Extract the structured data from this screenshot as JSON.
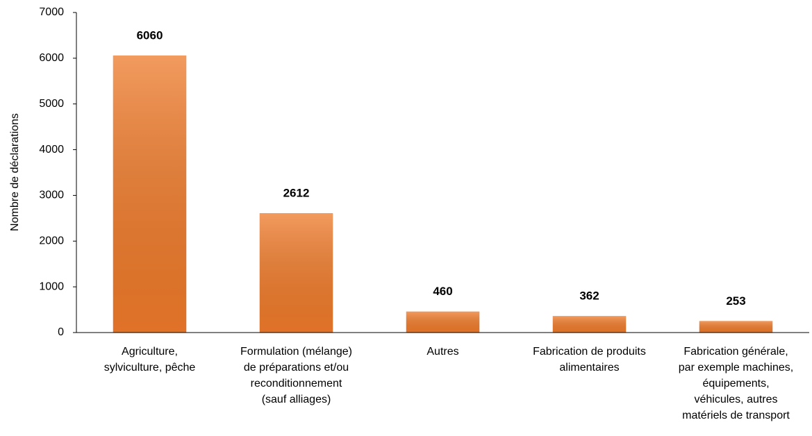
{
  "chart_data": {
    "type": "bar",
    "y_label": "Nombre de déclarations",
    "categories": [
      [
        "Agriculture,",
        "sylviculture, pêche"
      ],
      [
        "Formulation (mélange)",
        "de préparations et/ou",
        "reconditionnement",
        "(sauf alliages)"
      ],
      [
        "Autres"
      ],
      [
        "Fabrication de produits",
        "alimentaires"
      ],
      [
        "Fabrication générale,",
        "par exemple machines,",
        "équipements,",
        "véhicules, autres",
        "matériels de transport"
      ]
    ],
    "values": [
      6060,
      2612,
      460,
      362,
      253
    ],
    "color": "#ee7a2a",
    "ylim": [
      0,
      7000
    ],
    "yticks": [
      0,
      1000,
      2000,
      3000,
      4000,
      5000,
      6000,
      7000
    ],
    "grid": false
  }
}
